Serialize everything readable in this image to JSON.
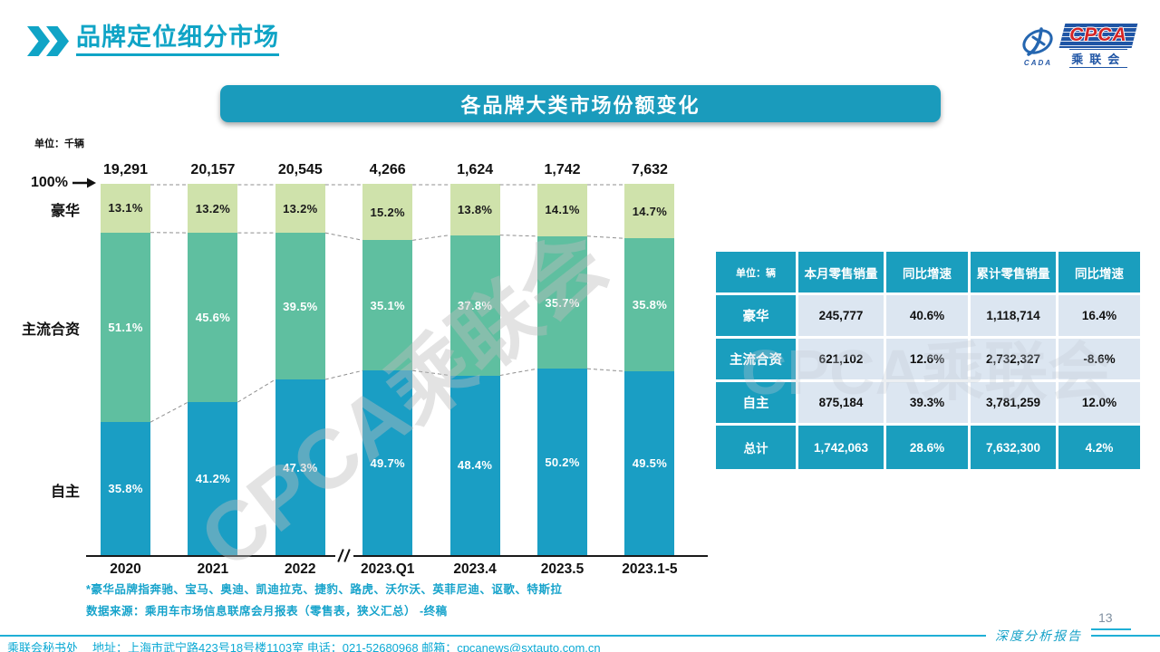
{
  "header": {
    "title": "品牌定位细分市场"
  },
  "logo": {
    "cpca": "CPCA",
    "cn": "乘联会",
    "cada": "CADA"
  },
  "banner": {
    "title": "各品牌大类市场份额变化"
  },
  "chart_data": {
    "type": "bar",
    "subtype": "stacked-100-percent",
    "unit_label": "单位：千辆",
    "axis_top_label": "100%",
    "categories": [
      "2020",
      "2021",
      "2022",
      "2023.Q1",
      "2023.4",
      "2023.5",
      "2023.1-5"
    ],
    "totals": [
      "19,291",
      "20,157",
      "20,545",
      "4,266",
      "1,624",
      "1,742",
      "7,632"
    ],
    "series": [
      {
        "name": "豪华",
        "color": "#cfe2ab",
        "label_color": "#1a1a1a",
        "values": [
          13.1,
          13.2,
          13.2,
          15.2,
          13.8,
          14.1,
          14.7
        ]
      },
      {
        "name": "主流合资",
        "color": "#5fbfa0",
        "label_color": "#ffffff",
        "values": [
          51.1,
          45.6,
          39.5,
          35.1,
          37.8,
          35.7,
          35.8
        ]
      },
      {
        "name": "自主",
        "color": "#1a9ec4",
        "label_color": "#ffffff",
        "values": [
          35.8,
          41.2,
          47.3,
          49.7,
          48.4,
          50.2,
          49.5
        ]
      }
    ],
    "ylim": [
      0,
      100
    ],
    "grid": false,
    "legend_position": "left-axis",
    "axis_break_after": "2022",
    "watermark": "CPCA乘联会"
  },
  "table": {
    "header": [
      "单位：辆",
      "本月零售销量",
      "同比增速",
      "累计零售销量",
      "同比增速"
    ],
    "rows": [
      {
        "label": "豪华",
        "cells": [
          "245,777",
          "40.6%",
          "1,118,714",
          "16.4%"
        ]
      },
      {
        "label": "主流合资",
        "cells": [
          "621,102",
          "12.6%",
          "2,732,327",
          "-8.6%"
        ]
      },
      {
        "label": "自主",
        "cells": [
          "875,184",
          "39.3%",
          "3,781,259",
          "12.0%"
        ]
      }
    ],
    "total_row": {
      "label": "总计",
      "cells": [
        "1,742,063",
        "28.6%",
        "7,632,300",
        "4.2%"
      ]
    }
  },
  "notes": {
    "luxury_note": "*豪华品牌指奔驰、宝马、奥迪、凯迪拉克、捷豹、路虎、沃尔沃、英菲尼迪、讴歌、特斯拉",
    "source_note": "数据来源：乘用车市场信息联席会月报表（零售表，狭义汇总） -终稿"
  },
  "footer": {
    "secretariat": "乘联会秘书处",
    "contact": "地址：上海市武宁路423号18号楼1103室 电话：021-52680968  邮箱：cpcanews@sxtauto.com.cn",
    "report_label": "深度分析报告",
    "page_number": "13"
  },
  "colors": {
    "accent_teal": "#1a9bbc",
    "table_header": "#1a9ebe",
    "table_cell_bg": "#dce6f1",
    "note_text": "#16a3cb",
    "footer_text": "#0ca9d4"
  }
}
